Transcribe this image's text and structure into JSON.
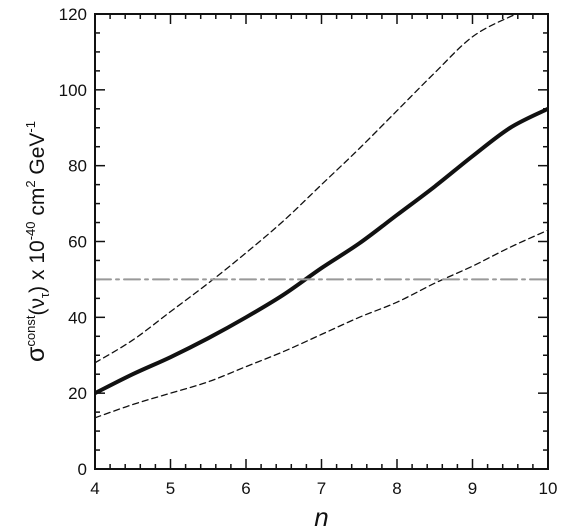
{
  "chart_data": {
    "type": "line",
    "title": "",
    "xlabel": "n",
    "ylabel": {
      "sigma": "σ",
      "sup": "const",
      "open": "(ν",
      "sub": "τ",
      "close": ")",
      "mid": " x 10",
      "exp": "-40",
      "units": " cm",
      "units_exp": "2",
      "gev": " GeV",
      "gev_exp": "-1"
    },
    "xlim": [
      4,
      10
    ],
    "ylim": [
      0,
      120
    ],
    "x_ticks": [
      4,
      5,
      6,
      7,
      8,
      9,
      10
    ],
    "y_ticks": [
      0,
      20,
      40,
      60,
      80,
      100,
      120
    ],
    "grid": false,
    "legend": "none",
    "series": [
      {
        "style": "thick-solid",
        "color": "#111111",
        "x": [
          4.0,
          4.5,
          5.0,
          5.5,
          6.0,
          6.5,
          7.0,
          7.5,
          8.0,
          8.5,
          9.0,
          9.5,
          10.0
        ],
        "y": [
          20,
          25,
          29.5,
          34.5,
          40,
          46,
          53,
          59.5,
          67,
          74.5,
          82.5,
          90,
          95
        ]
      },
      {
        "style": "dashed-upper",
        "color": "#111111",
        "x": [
          4.0,
          4.5,
          5.0,
          5.5,
          6.0,
          6.5,
          7.0,
          7.5,
          8.0,
          8.5,
          9.0,
          9.5,
          9.65
        ],
        "y": [
          28,
          34,
          41.5,
          49,
          57,
          65.5,
          75,
          84.5,
          94.5,
          104.5,
          114,
          119.3,
          120
        ]
      },
      {
        "style": "dashed-lower",
        "color": "#111111",
        "x": [
          4.0,
          4.5,
          5.0,
          5.5,
          6.0,
          6.5,
          7.0,
          7.5,
          8.0,
          8.5,
          9.0,
          9.5,
          10.0
        ],
        "y": [
          13.5,
          17,
          20,
          23,
          27,
          31,
          35.5,
          40,
          44,
          49,
          53.5,
          58.5,
          63
        ]
      },
      {
        "style": "dash-dot-horizontal",
        "color": "#999999",
        "x": [
          4.0,
          10.0
        ],
        "y": [
          50,
          50
        ]
      }
    ]
  }
}
